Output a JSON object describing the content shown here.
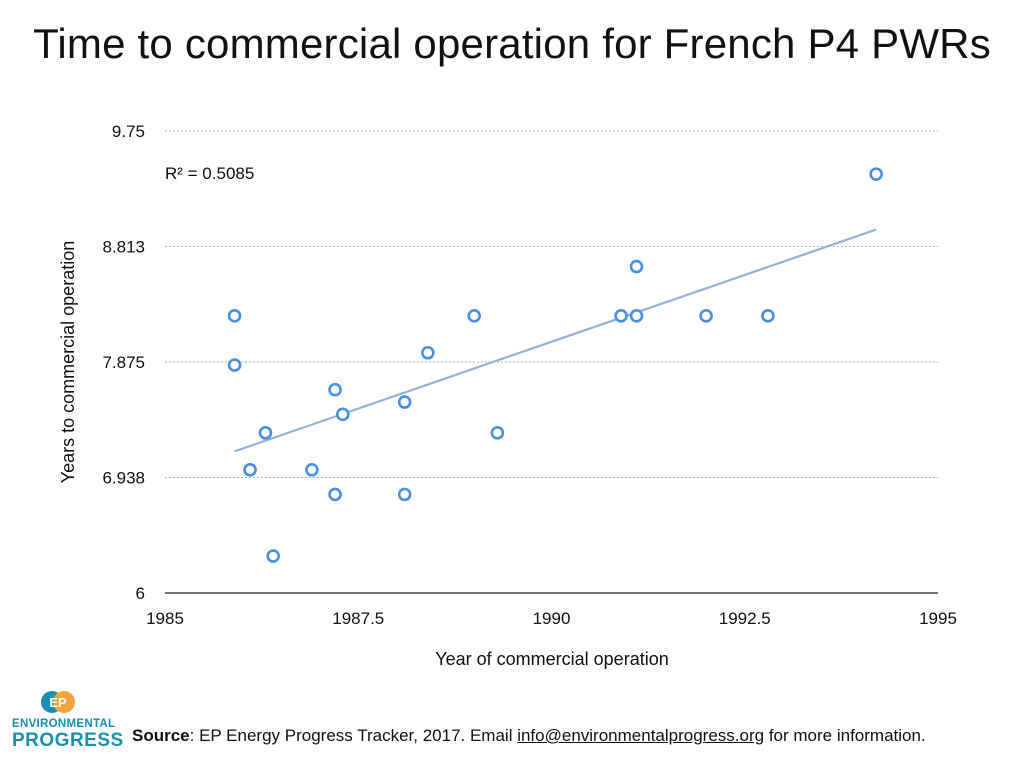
{
  "title": "Time to commercial operation for French P4 PWRs",
  "source": {
    "label": "Source",
    "text_before": ": EP Energy Progress Tracker, 2017. Email ",
    "email": "info@environmentalprogress.org",
    "text_after": " for more information."
  },
  "logo": {
    "initials": "EP",
    "line1": "ENVIRONMENTAL",
    "line2": "PROGRESS",
    "colors": {
      "teal": "#1a8fb0",
      "orange": "#f2a33a"
    }
  },
  "chart_data": {
    "type": "scatter",
    "title": "Time to commercial operation for French P4 PWRs",
    "xlabel": "Year of commercial operation",
    "ylabel": "Years to commercial operation",
    "xlim": [
      1985,
      1995
    ],
    "ylim": [
      6,
      9.75
    ],
    "x_ticks": [
      "1985",
      "1987.5",
      "1990",
      "1992.5",
      "1995"
    ],
    "y_ticks": [
      "6",
      "6.938",
      "7.875",
      "8.813",
      "9.75"
    ],
    "grid": "horizontal dotted",
    "annotation": "R² = 0.5085",
    "marker_color": "#4a90e2",
    "trendline_color": "#8fb1e0",
    "points": [
      {
        "x": 1985.9,
        "y": 8.25
      },
      {
        "x": 1985.9,
        "y": 7.85
      },
      {
        "x": 1986.1,
        "y": 7.0
      },
      {
        "x": 1986.3,
        "y": 7.3
      },
      {
        "x": 1986.4,
        "y": 6.3
      },
      {
        "x": 1986.9,
        "y": 7.0
      },
      {
        "x": 1987.2,
        "y": 7.65
      },
      {
        "x": 1987.2,
        "y": 6.8
      },
      {
        "x": 1987.3,
        "y": 7.45
      },
      {
        "x": 1988.1,
        "y": 7.55
      },
      {
        "x": 1988.1,
        "y": 6.8
      },
      {
        "x": 1988.4,
        "y": 7.95
      },
      {
        "x": 1989.0,
        "y": 8.25
      },
      {
        "x": 1989.3,
        "y": 7.3
      },
      {
        "x": 1990.9,
        "y": 8.25
      },
      {
        "x": 1991.1,
        "y": 8.65
      },
      {
        "x": 1991.1,
        "y": 8.25
      },
      {
        "x": 1992.0,
        "y": 8.25
      },
      {
        "x": 1992.8,
        "y": 8.25
      },
      {
        "x": 1994.2,
        "y": 9.4
      }
    ],
    "trendline": {
      "x": [
        1985.9,
        1994.2
      ],
      "y": [
        7.15,
        8.95
      ]
    }
  }
}
